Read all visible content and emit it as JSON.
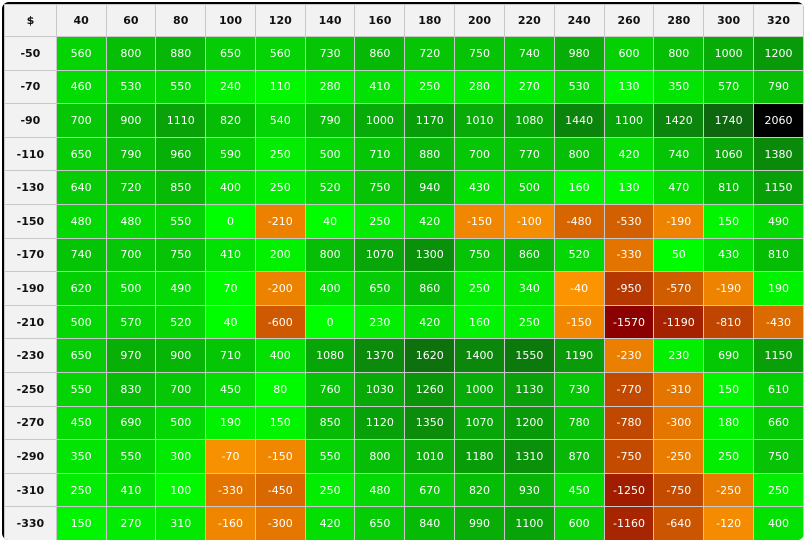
{
  "corner_label": "$",
  "columns": [
    "40",
    "60",
    "80",
    "100",
    "120",
    "140",
    "160",
    "180",
    "200",
    "220",
    "240",
    "260",
    "280",
    "300",
    "320"
  ],
  "rows": [
    {
      "label": "-50",
      "cells": [
        "560",
        "800",
        "880",
        "650",
        "560",
        "730",
        "860",
        "720",
        "750",
        "740",
        "980",
        "600",
        "800",
        "1000",
        "1200"
      ]
    },
    {
      "label": "-70",
      "cells": [
        "460",
        "530",
        "550",
        "240",
        "110",
        "280",
        "410",
        "250",
        "280",
        "270",
        "530",
        "130",
        "350",
        "570",
        "790"
      ]
    },
    {
      "label": "-90",
      "cells": [
        "700",
        "900",
        "1110",
        "820",
        "540",
        "790",
        "1000",
        "1170",
        "1010",
        "1080",
        "1440",
        "1100",
        "1420",
        "1740",
        "2060"
      ]
    },
    {
      "label": "-110",
      "cells": [
        "650",
        "790",
        "960",
        "590",
        "250",
        "500",
        "710",
        "880",
        "700",
        "770",
        "800",
        "420",
        "740",
        "1060",
        "1380"
      ]
    },
    {
      "label": "-130",
      "cells": [
        "640",
        "720",
        "850",
        "400",
        "250",
        "520",
        "750",
        "940",
        "430",
        "500",
        "160",
        "130",
        "470",
        "810",
        "1150"
      ]
    },
    {
      "label": "-150",
      "cells": [
        "480",
        "480",
        "550",
        "0",
        "-210",
        "40",
        "250",
        "420",
        "-150",
        "-100",
        "-480",
        "-530",
        "-190",
        "150",
        "490"
      ]
    },
    {
      "label": "-170",
      "cells": [
        "740",
        "700",
        "750",
        "410",
        "200",
        "800",
        "1070",
        "1300",
        "750",
        "860",
        "520",
        "-330",
        "50",
        "430",
        "810"
      ]
    },
    {
      "label": "-190",
      "cells": [
        "620",
        "500",
        "490",
        "70",
        "-200",
        "400",
        "650",
        "860",
        "250",
        "340",
        "-40",
        "-950",
        "-570",
        "-190",
        "190"
      ]
    },
    {
      "label": "-210",
      "cells": [
        "500",
        "570",
        "520",
        "40",
        "-600",
        "0",
        "230",
        "420",
        "160",
        "250",
        "-150",
        "-1570",
        "-1190",
        "-810",
        "-430"
      ]
    },
    {
      "label": "-230",
      "cells": [
        "650",
        "970",
        "900",
        "710",
        "400",
        "1080",
        "1370",
        "1620",
        "1400",
        "1550",
        "1190",
        "-230",
        "230",
        "690",
        "1150"
      ]
    },
    {
      "label": "-250",
      "cells": [
        "550",
        "830",
        "700",
        "450",
        "80",
        "760",
        "1030",
        "1260",
        "1000",
        "1130",
        "730",
        "-770",
        "-310",
        "150",
        "610"
      ]
    },
    {
      "label": "-270",
      "cells": [
        "450",
        "690",
        "500",
        "190",
        "150",
        "850",
        "1120",
        "1350",
        "1070",
        "1200",
        "780",
        "-780",
        "-300",
        "180",
        "660"
      ]
    },
    {
      "label": "-290",
      "cells": [
        "350",
        "550",
        "300",
        "-70",
        "-150",
        "550",
        "800",
        "1010",
        "1180",
        "1310",
        "870",
        "-750",
        "-250",
        "250",
        "750"
      ]
    },
    {
      "label": "-310",
      "cells": [
        "250",
        "410",
        "100",
        "-330",
        "-450",
        "250",
        "480",
        "670",
        "820",
        "930",
        "450",
        "-1250",
        "-750",
        "-250",
        "250"
      ]
    },
    {
      "label": "-330",
      "cells": [
        "150",
        "270",
        "310",
        "-160",
        "-300",
        "420",
        "650",
        "840",
        "990",
        "1100",
        "600",
        "-1160",
        "-640",
        "-120",
        "400"
      ]
    }
  ],
  "colors": {
    "positive_low": "#00ff00",
    "positive_high": "#0f5c0f",
    "max_value": "#000000",
    "negative_low": "#ff9a00",
    "negative_high": "#8b0000",
    "header_bg": "#f2f2f2",
    "border": "#c8c8c8"
  }
}
